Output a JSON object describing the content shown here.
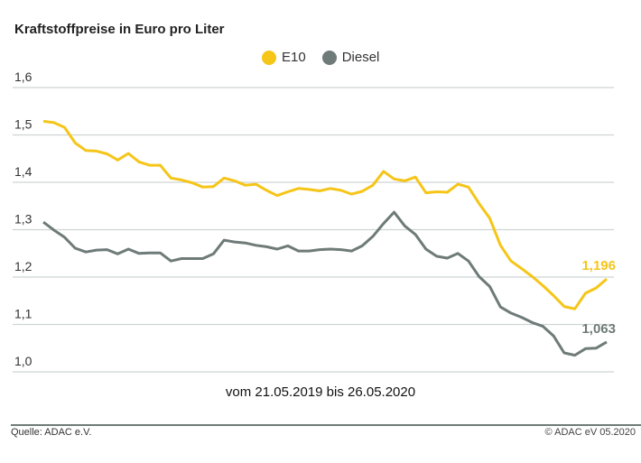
{
  "chart_data": {
    "type": "line",
    "title": "Kraftstoffpreise in Euro pro Liter",
    "subtitle": "vom 21.05.2019 bis 26.05.2020",
    "xlabel": "",
    "ylabel": "",
    "ylim": [
      1.0,
      1.6
    ],
    "yticks": [
      1.0,
      1.1,
      1.2,
      1.3,
      1.4,
      1.5,
      1.6
    ],
    "ytick_labels": [
      "1,0",
      "1,1",
      "1,2",
      "1,3",
      "1,4",
      "1,5",
      "1,6"
    ],
    "grid": true,
    "legend_position": "top-center",
    "x_start": "21.05.2019",
    "x_end": "26.05.2020",
    "x_interval": "weekly",
    "series": [
      {
        "name": "E10",
        "color": "#f5c518",
        "end_label": "1,196",
        "values": [
          1.529,
          1.526,
          1.516,
          1.483,
          1.467,
          1.466,
          1.46,
          1.447,
          1.461,
          1.443,
          1.436,
          1.436,
          1.409,
          1.405,
          1.399,
          1.39,
          1.391,
          1.409,
          1.403,
          1.394,
          1.396,
          1.383,
          1.372,
          1.38,
          1.387,
          1.385,
          1.382,
          1.387,
          1.383,
          1.375,
          1.381,
          1.394,
          1.423,
          1.407,
          1.403,
          1.411,
          1.378,
          1.38,
          1.379,
          1.396,
          1.39,
          1.355,
          1.324,
          1.267,
          1.234,
          1.218,
          1.201,
          1.182,
          1.161,
          1.138,
          1.133,
          1.166,
          1.177,
          1.196
        ]
      },
      {
        "name": "Diesel",
        "color": "#6e7b78",
        "end_label": "1,063",
        "values": [
          1.316,
          1.299,
          1.284,
          1.261,
          1.253,
          1.257,
          1.258,
          1.249,
          1.259,
          1.25,
          1.251,
          1.251,
          1.234,
          1.239,
          1.239,
          1.239,
          1.249,
          1.278,
          1.274,
          1.272,
          1.267,
          1.264,
          1.259,
          1.266,
          1.255,
          1.255,
          1.258,
          1.259,
          1.258,
          1.255,
          1.266,
          1.286,
          1.313,
          1.337,
          1.308,
          1.29,
          1.259,
          1.244,
          1.24,
          1.25,
          1.234,
          1.201,
          1.18,
          1.137,
          1.124,
          1.115,
          1.104,
          1.096,
          1.076,
          1.04,
          1.035,
          1.049,
          1.05,
          1.063
        ]
      }
    ]
  },
  "footer": {
    "source": "Quelle: ADAC e.V.",
    "copyright": "© ADAC eV 05.2020"
  }
}
